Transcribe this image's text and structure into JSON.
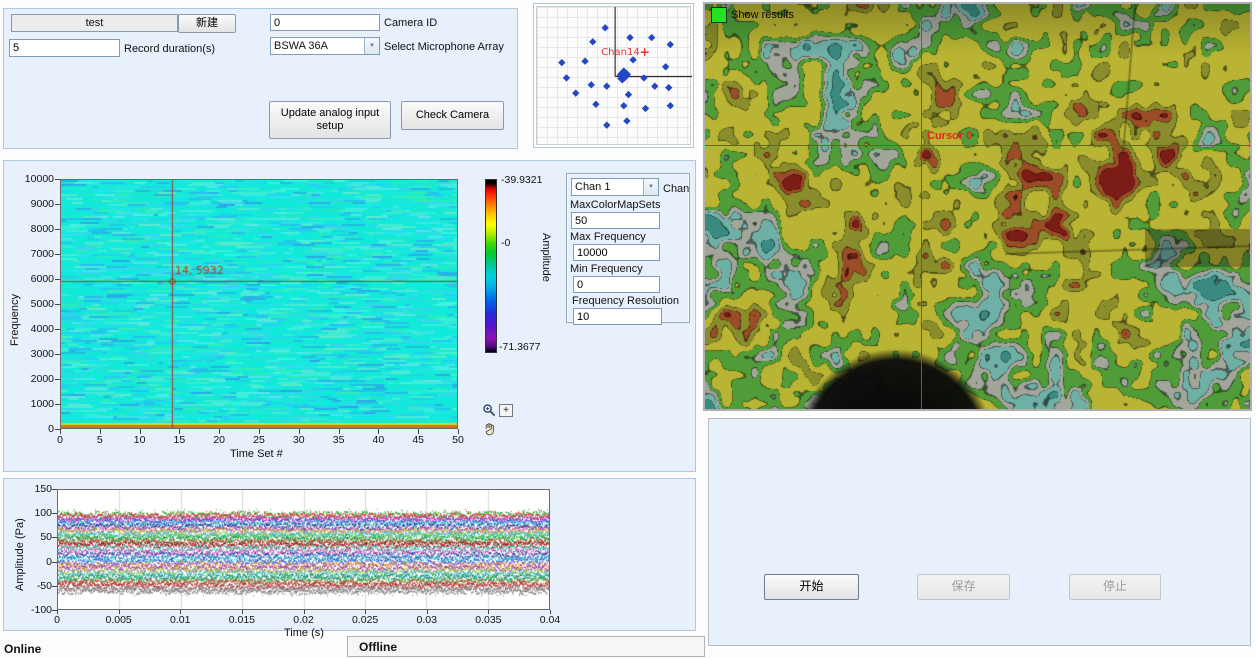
{
  "acquisition": {
    "test_name": "test",
    "new_button": "新建",
    "camera_id": "0",
    "camera_id_label": "Camera ID",
    "record_duration": "5",
    "record_duration_label": "Record duration(s)",
    "mic_array_value": "BSWA 36A",
    "mic_array_label": "Select Microphone Array",
    "update_button_line1": "Update analog input",
    "update_button_line2": "setup",
    "check_camera_button": "Check Camera"
  },
  "mic_array_plot": {
    "cursor_label": "Chan14"
  },
  "spectrogram": {
    "ylabel": "Frequency",
    "xlabel": "Time Set #",
    "cursor_label": "14, 5932",
    "colorbar_label": "Amplitude",
    "colorbar_max": "-39.9321",
    "colorbar_mid": "-0",
    "colorbar_min": "-71.3677"
  },
  "channel_controls": {
    "chan_value": "Chan 1",
    "chan_label": "Chan",
    "max_colormap_label": "MaxColorMapSets",
    "max_colormap": "50",
    "max_freq_label": "Max Frequency",
    "max_freq": "10000",
    "min_freq_label": "Min Frequency",
    "min_freq": "0",
    "freq_res_label": "Frequency Resolution",
    "freq_res": "10"
  },
  "waveform": {
    "ylabel": "Amplitude (Pa)",
    "xlabel": "Time (s)"
  },
  "camera_view": {
    "show_results_label": "Show results",
    "cursor_label": "Cursor 0"
  },
  "controls_right": {
    "start": "开始",
    "save": "保存",
    "stop": "停止"
  },
  "status": {
    "left": "Online",
    "right": "Offline"
  },
  "icons": {
    "chevron": "▼",
    "zoom_plus": "+"
  },
  "chart_data": [
    {
      "id": "spectrogram",
      "type": "heatmap",
      "xlabel": "Time Set #",
      "ylabel": "Frequency",
      "xlim": [
        0,
        50
      ],
      "ylim": [
        0,
        10000
      ],
      "xticks": [
        0,
        5,
        10,
        15,
        20,
        25,
        30,
        35,
        40,
        45,
        50
      ],
      "yticks": [
        0,
        1000,
        2000,
        3000,
        4000,
        5000,
        6000,
        7000,
        8000,
        9000,
        10000
      ],
      "colorbar": {
        "label": "Amplitude",
        "max": -39.9321,
        "mid_marker": "-0",
        "min": -71.3677
      },
      "cursor": {
        "x": 14,
        "y": 5932,
        "label": "14, 5932"
      },
      "base_color": "#12e9da",
      "streak_colors": [
        "#19ecd6",
        "#23e6c4",
        "#2de2ee",
        "#3ad4f0",
        "#35ecb6",
        "#4aeed2",
        "#28ccf2",
        "#60eacc",
        "#27bcee",
        "#45f2de",
        "#2aa6e6",
        "#5ae6ea"
      ],
      "bottom_strip_colors": [
        "#c2e23a",
        "#df6d1c"
      ],
      "description": "uniform cyan broadband noise, high-amplitude yellow/orange band at 0 Hz"
    },
    {
      "id": "time-waveform",
      "type": "line",
      "xlabel": "Time (s)",
      "ylabel": "Amplitude (Pa)",
      "xlim": [
        0,
        0.04
      ],
      "ylim": [
        -100,
        150
      ],
      "xticks": [
        0,
        0.005,
        0.01,
        0.015,
        0.02,
        0.025,
        0.03,
        0.035,
        0.04
      ],
      "yticks": [
        -100,
        -50,
        0,
        50,
        100,
        150
      ],
      "noise_amplitude_pa": 4,
      "channels": [
        {
          "offset": 100,
          "color": "#2fae3c"
        },
        {
          "offset": 96,
          "color": "#e03428"
        },
        {
          "offset": 90,
          "color": "#cf3ccf"
        },
        {
          "offset": 85,
          "color": "#4050d8"
        },
        {
          "offset": 80,
          "color": "#38d0d0"
        },
        {
          "offset": 74,
          "color": "#283296"
        },
        {
          "offset": 68,
          "color": "#ee4f9e"
        },
        {
          "offset": 63,
          "color": "#a8cc38"
        },
        {
          "offset": 57,
          "color": "#30b4e0"
        },
        {
          "offset": 52,
          "color": "#50c850"
        },
        {
          "offset": 47,
          "color": "#2f9e40"
        },
        {
          "offset": 41,
          "color": "#d63333"
        },
        {
          "offset": 35,
          "color": "#8c1f1f"
        },
        {
          "offset": 28,
          "color": "#38d0c0"
        },
        {
          "offset": 21,
          "color": "#e050b0"
        },
        {
          "offset": 14,
          "color": "#3040b0"
        },
        {
          "offset": 7,
          "color": "#28c8c8"
        },
        {
          "offset": 0,
          "color": "#4858e0"
        },
        {
          "offset": -7,
          "color": "#e88828"
        },
        {
          "offset": -14,
          "color": "#9838c8"
        },
        {
          "offset": -20,
          "color": "#a8c838"
        },
        {
          "offset": -26,
          "color": "#38c8c8"
        },
        {
          "offset": -32,
          "color": "#208888"
        },
        {
          "offset": -38,
          "color": "#40b840"
        },
        {
          "offset": -44,
          "color": "#d04040"
        },
        {
          "offset": -50,
          "color": "#b03030"
        },
        {
          "offset": -56,
          "color": "#989898"
        },
        {
          "offset": -61,
          "color": "#808080"
        }
      ]
    },
    {
      "id": "mic-array",
      "type": "scatter",
      "dot_color": "#2347c5",
      "cursor_color": "#e03030",
      "crosshair": [
        0.504,
        0.5
      ],
      "points": [
        [
          0.44,
          0.15
        ],
        [
          0.6,
          0.22
        ],
        [
          0.74,
          0.22
        ],
        [
          0.36,
          0.25
        ],
        [
          0.86,
          0.27
        ],
        [
          0.31,
          0.39
        ],
        [
          0.16,
          0.4
        ],
        [
          0.62,
          0.38
        ],
        [
          0.83,
          0.43
        ],
        [
          0.19,
          0.51
        ],
        [
          0.69,
          0.51
        ],
        [
          0.35,
          0.56
        ],
        [
          0.45,
          0.57
        ],
        [
          0.76,
          0.57
        ],
        [
          0.85,
          0.58
        ],
        [
          0.25,
          0.62
        ],
        [
          0.59,
          0.63
        ],
        [
          0.38,
          0.7
        ],
        [
          0.56,
          0.71
        ],
        [
          0.86,
          0.71
        ],
        [
          0.7,
          0.73
        ],
        [
          0.58,
          0.82
        ],
        [
          0.45,
          0.85
        ]
      ],
      "center_cluster": [
        [
          0.545,
          0.49
        ],
        [
          0.565,
          0.5
        ],
        [
          0.55,
          0.515
        ],
        [
          0.575,
          0.485
        ],
        [
          0.56,
          0.47
        ]
      ],
      "cursor": {
        "point": [
          0.695,
          0.325
        ],
        "label": "Chan14"
      }
    },
    {
      "id": "acoustic-map",
      "type": "heatmap",
      "cursor": {
        "label": "Cursor 0",
        "x_frac": 0.396,
        "y_frac": 0.348
      },
      "bands": [
        {
          "t": 0.3,
          "c": "#3a8a82"
        },
        {
          "t": 0.4,
          "c": "#6fb0a6"
        },
        {
          "t": 0.47,
          "c": "#a2a69a"
        },
        {
          "t": 0.57,
          "c": "#4f9c38"
        },
        {
          "t": 0.74,
          "c": "#b9b433"
        },
        {
          "t": 0.83,
          "c": "#898d2b"
        },
        {
          "t": 0.9,
          "c": "#9c4c26"
        },
        {
          "t": 1.01,
          "c": "#7c1c17"
        }
      ],
      "bumps": [
        {
          "x": 0.4,
          "y": 0.52,
          "s": 0.2,
          "a": 0.26
        },
        {
          "x": 0.8,
          "y": 0.36,
          "s": 0.12,
          "a": 0.3
        },
        {
          "x": 0.03,
          "y": 0.1,
          "s": 0.15,
          "a": 0.16
        },
        {
          "x": 0.62,
          "y": 0.12,
          "s": 0.1,
          "a": 0.12
        }
      ],
      "silhouette": {
        "x": 190,
        "y": 445,
        "r": 100
      }
    }
  ]
}
